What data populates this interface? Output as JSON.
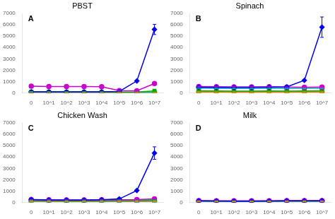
{
  "chart_data": [
    {
      "type": "line",
      "title": "PBST",
      "annotations": [
        "A"
      ],
      "categories": [
        "0",
        "10^1",
        "10^2",
        "10^3",
        "10^4",
        "10^5",
        "10^6",
        "10^7"
      ],
      "ylim": [
        0,
        7000
      ],
      "yticks": [
        0,
        1000,
        2000,
        3000,
        4000,
        5000,
        6000,
        7000
      ],
      "grid": false,
      "series": [
        {
          "color": "#0000EE",
          "marker": "diamond",
          "values": [
            80,
            80,
            80,
            80,
            80,
            120,
            1050,
            5600
          ],
          "errors": [
            0,
            0,
            0,
            0,
            0,
            0,
            0,
            450
          ]
        },
        {
          "color": "#CC00CC",
          "marker": "circle",
          "values": [
            580,
            560,
            550,
            550,
            540,
            200,
            180,
            820
          ],
          "errors": [
            0,
            0,
            0,
            0,
            0,
            0,
            0,
            0
          ]
        },
        {
          "color": "#00AA00",
          "marker": "square",
          "values": [
            100,
            90,
            85,
            85,
            85,
            70,
            75,
            170
          ],
          "errors": [
            0,
            0,
            0,
            0,
            0,
            0,
            0,
            0
          ]
        },
        {
          "color": "#00BBBB",
          "marker": "circle",
          "values": [
            65,
            55,
            50,
            50,
            50,
            45,
            45,
            45
          ],
          "errors": [
            0,
            0,
            0,
            0,
            0,
            0,
            0,
            0
          ]
        },
        {
          "color": "#FF6600",
          "marker": "circle",
          "values": [
            50,
            40,
            35,
            35,
            35,
            30,
            30,
            30
          ],
          "errors": [
            0,
            0,
            0,
            0,
            0,
            0,
            0,
            0
          ]
        },
        {
          "color": "#AAAA00",
          "marker": "circle",
          "values": [
            45,
            35,
            30,
            30,
            30,
            25,
            25,
            25
          ],
          "errors": [
            0,
            0,
            0,
            0,
            0,
            0,
            0,
            0
          ]
        }
      ]
    },
    {
      "type": "line",
      "title": "Spinach",
      "annotations": [
        "B"
      ],
      "categories": [
        "0",
        "10^1",
        "10^2",
        "10^3",
        "10^4",
        "10^5",
        "10^6",
        "10^7"
      ],
      "ylim": [
        0,
        7000
      ],
      "yticks": [
        0,
        1000,
        2000,
        3000,
        4000,
        5000,
        6000,
        7000
      ],
      "grid": false,
      "series": [
        {
          "color": "#0000EE",
          "marker": "diamond",
          "values": [
            500,
            480,
            470,
            470,
            490,
            520,
            1100,
            5800
          ],
          "errors": [
            0,
            0,
            0,
            0,
            0,
            0,
            0,
            900
          ]
        },
        {
          "color": "#CC00CC",
          "marker": "circle",
          "values": [
            560,
            540,
            530,
            530,
            540,
            510,
            500,
            510
          ],
          "errors": [
            0,
            0,
            0,
            0,
            0,
            0,
            0,
            0
          ]
        },
        {
          "color": "#00AA00",
          "marker": "square",
          "values": [
            180,
            160,
            155,
            155,
            165,
            155,
            165,
            175
          ],
          "errors": [
            0,
            0,
            0,
            0,
            0,
            0,
            0,
            0
          ]
        },
        {
          "color": "#00BBBB",
          "marker": "circle",
          "values": [
            420,
            400,
            390,
            390,
            400,
            385,
            395,
            405
          ],
          "errors": [
            0,
            0,
            0,
            0,
            0,
            0,
            0,
            0
          ]
        },
        {
          "color": "#FF6600",
          "marker": "circle",
          "values": [
            90,
            80,
            75,
            75,
            80,
            75,
            80,
            80
          ],
          "errors": [
            0,
            0,
            0,
            0,
            0,
            0,
            0,
            0
          ]
        },
        {
          "color": "#AAAA00",
          "marker": "circle",
          "values": [
            75,
            65,
            60,
            60,
            65,
            60,
            65,
            65
          ],
          "errors": [
            0,
            0,
            0,
            0,
            0,
            0,
            0,
            0
          ]
        }
      ]
    },
    {
      "type": "line",
      "title": "Chicken Wash",
      "annotations": [
        "C"
      ],
      "categories": [
        "0",
        "10^1",
        "10^2",
        "10^3",
        "10^4",
        "10^5",
        "10^6",
        "10^7"
      ],
      "ylim": [
        0,
        7000
      ],
      "yticks": [
        0,
        1000,
        2000,
        3000,
        4000,
        5000,
        6000,
        7000
      ],
      "grid": false,
      "series": [
        {
          "color": "#0000EE",
          "marker": "diamond",
          "values": [
            250,
            200,
            200,
            200,
            230,
            300,
            1050,
            4350
          ],
          "errors": [
            0,
            0,
            0,
            0,
            0,
            0,
            0,
            550
          ]
        },
        {
          "color": "#CC00CC",
          "marker": "circle",
          "values": [
            240,
            220,
            210,
            210,
            220,
            230,
            240,
            300
          ],
          "errors": [
            0,
            0,
            0,
            0,
            0,
            0,
            0,
            0
          ]
        },
        {
          "color": "#00AA00",
          "marker": "square",
          "values": [
            185,
            165,
            155,
            155,
            165,
            185,
            185,
            205
          ],
          "errors": [
            0,
            0,
            0,
            0,
            0,
            0,
            0,
            0
          ]
        },
        {
          "color": "#00BBBB",
          "marker": "circle",
          "values": [
            140,
            130,
            125,
            125,
            130,
            140,
            145,
            150
          ],
          "errors": [
            0,
            0,
            0,
            0,
            0,
            0,
            0,
            0
          ]
        },
        {
          "color": "#FF6600",
          "marker": "circle",
          "values": [
            90,
            80,
            75,
            75,
            80,
            90,
            90,
            100
          ],
          "errors": [
            0,
            0,
            0,
            0,
            0,
            0,
            0,
            0
          ]
        },
        {
          "color": "#AAAA00",
          "marker": "circle",
          "values": [
            75,
            65,
            60,
            60,
            65,
            75,
            75,
            80
          ],
          "errors": [
            0,
            0,
            0,
            0,
            0,
            0,
            0,
            0
          ]
        }
      ]
    },
    {
      "type": "line",
      "title": "Milk",
      "annotations": [
        "D"
      ],
      "categories": [
        "0",
        "10^1",
        "10^2",
        "10^3",
        "10^4",
        "10^5",
        "10^6",
        "10^7"
      ],
      "ylim": [
        0,
        7000
      ],
      "yticks": [
        0,
        1000,
        2000,
        3000,
        4000,
        5000,
        6000,
        7000
      ],
      "grid": false,
      "series": [
        {
          "color": "#0000EE",
          "marker": "diamond",
          "values": [
            130,
            120,
            110,
            110,
            120,
            130,
            140,
            140
          ],
          "errors": [
            0,
            0,
            0,
            0,
            0,
            0,
            0,
            0
          ]
        },
        {
          "color": "#CC00CC",
          "marker": "circle",
          "values": [
            150,
            140,
            135,
            135,
            140,
            145,
            150,
            155
          ],
          "errors": [
            0,
            0,
            0,
            0,
            0,
            0,
            0,
            0
          ]
        },
        {
          "color": "#00AA00",
          "marker": "square",
          "values": [
            120,
            110,
            105,
            105,
            110,
            115,
            115,
            120
          ],
          "errors": [
            0,
            0,
            0,
            0,
            0,
            0,
            0,
            0
          ]
        },
        {
          "color": "#00BBBB",
          "marker": "circle",
          "values": [
            110,
            100,
            95,
            95,
            100,
            105,
            110,
            110
          ],
          "errors": [
            0,
            0,
            0,
            0,
            0,
            0,
            0,
            0
          ]
        },
        {
          "color": "#FF6600",
          "marker": "circle",
          "values": [
            100,
            90,
            85,
            85,
            90,
            95,
            100,
            100
          ],
          "errors": [
            0,
            0,
            0,
            0,
            0,
            0,
            0,
            0
          ]
        },
        {
          "color": "#AAAA00",
          "marker": "circle",
          "values": [
            85,
            75,
            70,
            70,
            75,
            80,
            80,
            85
          ],
          "errors": [
            0,
            0,
            0,
            0,
            0,
            0,
            0,
            0
          ]
        }
      ]
    }
  ]
}
